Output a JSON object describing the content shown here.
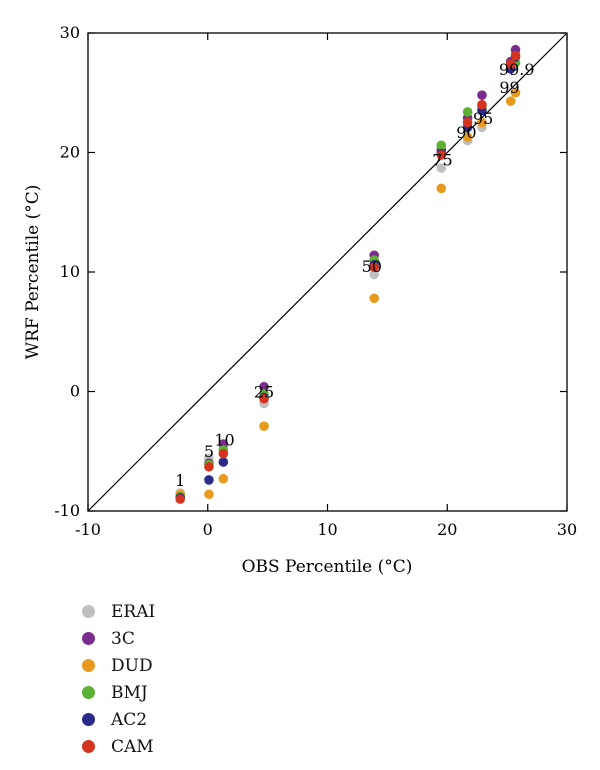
{
  "chart_data": {
    "type": "scatter",
    "xlabel": "OBS Percentile (°C)",
    "ylabel": "WRF Percentile (°C)",
    "xlim": [
      -10,
      30
    ],
    "ylim": [
      -10,
      30
    ],
    "xticks": [
      "-10",
      "0",
      "10",
      "20",
      "30"
    ],
    "yticks": [
      "-10",
      "0",
      "10",
      "20",
      "30"
    ],
    "reference_line": "1:1",
    "grid": false,
    "legend_position": "below",
    "percentile_labels": [
      {
        "text": "1",
        "x": -2.3,
        "y": -7.9
      },
      {
        "text": "5",
        "x": 0.1,
        "y": -5.5
      },
      {
        "text": "10",
        "x": 1.4,
        "y": -4.5
      },
      {
        "text": "25",
        "x": 4.7,
        "y": -0.5
      },
      {
        "text": "50",
        "x": 13.7,
        "y": 10.0
      },
      {
        "text": "75",
        "x": 19.6,
        "y": 18.9
      },
      {
        "text": "90",
        "x": 21.6,
        "y": 21.2
      },
      {
        "text": "95",
        "x": 23.0,
        "y": 22.4
      },
      {
        "text": "99",
        "x": 25.2,
        "y": 25.0
      },
      {
        "text": "99.9",
        "x": 25.8,
        "y": 26.5
      }
    ],
    "x": [
      -2.3,
      0.1,
      1.3,
      4.7,
      13.9,
      19.5,
      21.7,
      22.9,
      25.3,
      25.7
    ],
    "series": [
      {
        "name": "ERAI",
        "color": "#bfbfbf",
        "values": [
          -8.5,
          -5.6,
          -4.8,
          -1.0,
          9.8,
          18.7,
          21.0,
          22.1,
          27.3,
          28.3
        ]
      },
      {
        "name": "3C",
        "color": "#7b2d8e",
        "values": [
          -8.7,
          -6.0,
          -4.4,
          0.4,
          11.4,
          20.2,
          22.9,
          24.8,
          27.6,
          28.6
        ]
      },
      {
        "name": "DUD",
        "color": "#e89a1f",
        "values": [
          -8.6,
          -8.6,
          -7.3,
          -2.9,
          7.8,
          17.0,
          21.3,
          22.5,
          24.3,
          25.0
        ]
      },
      {
        "name": "BMJ",
        "color": "#5cb034",
        "values": [
          -8.8,
          -6.1,
          -4.9,
          -0.2,
          11.0,
          20.6,
          23.4,
          23.8,
          27.2,
          27.5
        ]
      },
      {
        "name": "AC2",
        "color": "#2a2a8a",
        "values": [
          -8.9,
          -7.4,
          -5.9,
          -0.5,
          10.6,
          19.9,
          22.1,
          23.5,
          27.0,
          28.0
        ]
      },
      {
        "name": "CAM",
        "color": "#d33420",
        "values": [
          -9.0,
          -6.3,
          -5.2,
          -0.6,
          10.4,
          19.8,
          22.5,
          24.0,
          27.4,
          28.1
        ]
      }
    ]
  }
}
